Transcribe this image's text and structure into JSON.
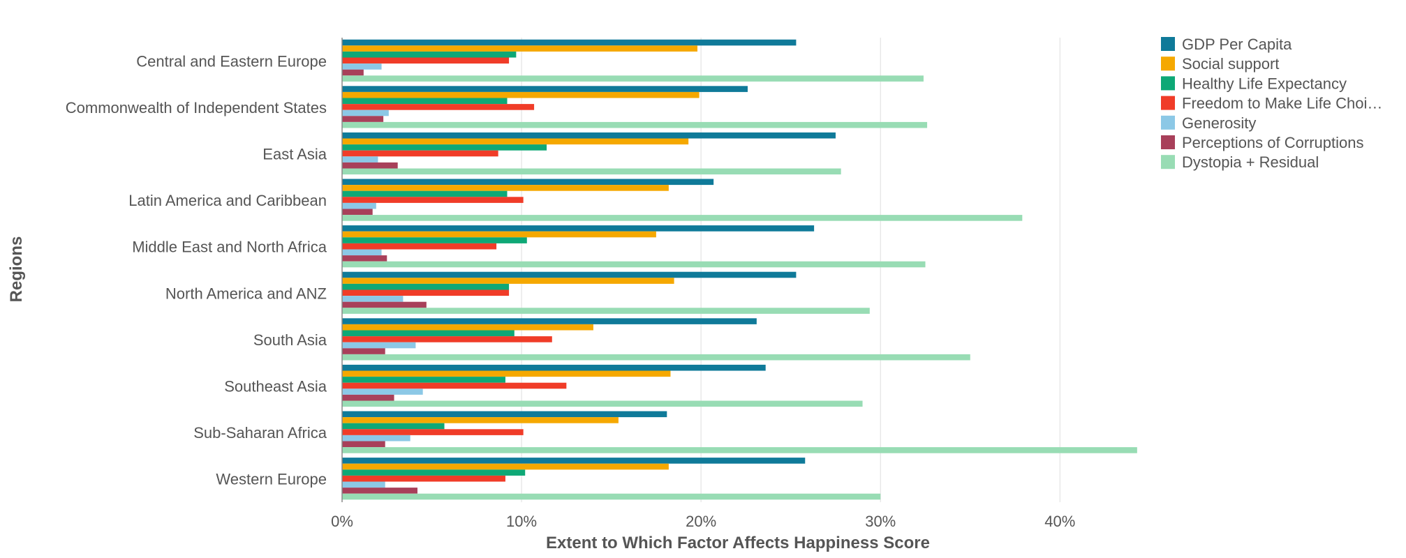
{
  "chart_data": {
    "type": "bar",
    "orientation": "horizontal",
    "title": "",
    "xlabel": "Extent to Which Factor Affects Happiness Score",
    "ylabel": "Regions",
    "xlim": [
      0,
      44.5
    ],
    "x_ticks": [
      0,
      10,
      20,
      30,
      40
    ],
    "x_tick_labels": [
      "0%",
      "10%",
      "20%",
      "30%",
      "40%"
    ],
    "grid": "vertical",
    "legend_position": "top-right",
    "categories": [
      "Central and Eastern Europe",
      "Commonwealth of Independent States",
      "East Asia",
      "Latin America and Caribbean",
      "Middle East and North Africa",
      "North America and ANZ",
      "South Asia",
      "Southeast Asia",
      "Sub-Saharan Africa",
      "Western Europe"
    ],
    "series": [
      {
        "name": "GDP Per Capita",
        "legend_label": "GDP Per Capita",
        "color": "#0f7a99",
        "values": [
          25.3,
          22.6,
          27.5,
          20.7,
          26.3,
          25.3,
          23.1,
          23.6,
          18.1,
          25.8
        ]
      },
      {
        "name": "Social support",
        "legend_label": "Social support",
        "color": "#f5a800",
        "values": [
          19.8,
          19.9,
          19.3,
          18.2,
          17.5,
          18.5,
          14.0,
          18.3,
          15.4,
          18.2
        ]
      },
      {
        "name": "Healthy Life Expectancy",
        "legend_label": "Healthy Life Expectancy",
        "color": "#0ea876",
        "values": [
          9.7,
          9.2,
          11.4,
          9.2,
          10.3,
          9.3,
          9.6,
          9.1,
          5.7,
          10.2
        ]
      },
      {
        "name": "Freedom to Make Life Choices",
        "legend_label": "Freedom to Make Life Choi…",
        "color": "#f03c28",
        "values": [
          9.3,
          10.7,
          8.7,
          10.1,
          8.6,
          9.3,
          11.7,
          12.5,
          10.1,
          9.1
        ]
      },
      {
        "name": "Generosity",
        "legend_label": "Generosity",
        "color": "#8cc8e6",
        "values": [
          2.2,
          2.6,
          2.0,
          1.9,
          2.2,
          3.4,
          4.1,
          4.5,
          3.8,
          2.4
        ]
      },
      {
        "name": "Perceptions of Corruptions",
        "legend_label": "Perceptions of Corruptions",
        "color": "#a8405a",
        "values": [
          1.2,
          2.3,
          3.1,
          1.7,
          2.5,
          4.7,
          2.4,
          2.9,
          2.4,
          4.2
        ]
      },
      {
        "name": "Dystopia + Residual",
        "legend_label": "Dystopia + Residual",
        "color": "#98dcb4",
        "values": [
          32.4,
          32.6,
          27.8,
          37.9,
          32.5,
          29.4,
          35.0,
          29.0,
          44.3,
          30.0
        ]
      }
    ]
  }
}
